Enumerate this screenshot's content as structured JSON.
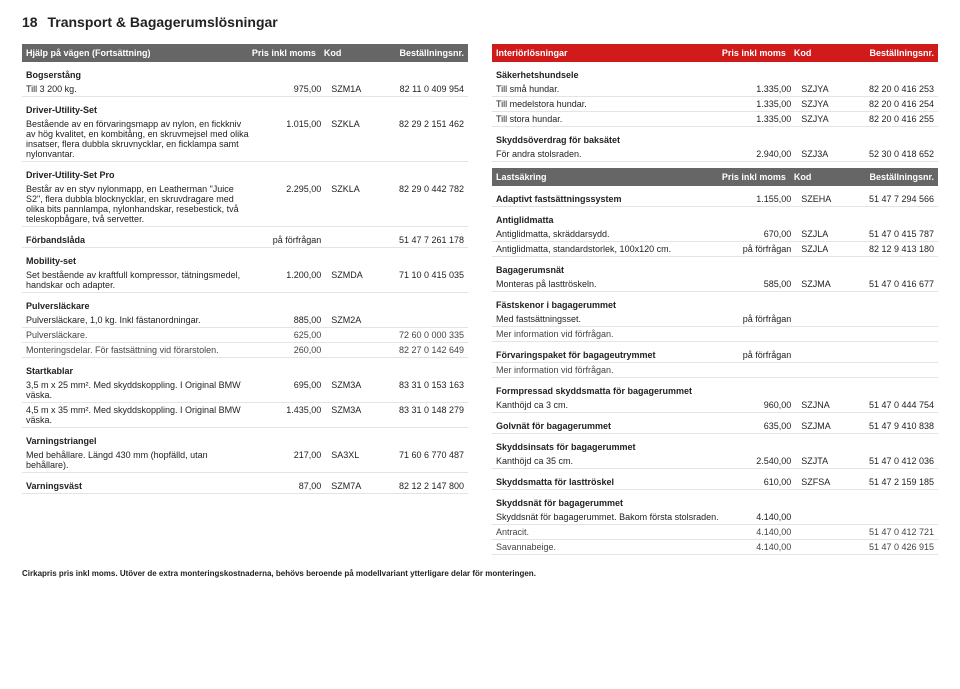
{
  "page_number": "18",
  "page_title": "Transport & Bagagerumslösningar",
  "left": {
    "header": {
      "title": "Hjälp på vägen (Fortsättning)",
      "col_price": "Pris inkl moms",
      "col_code": "Kod",
      "col_order": "Beställningsnr."
    },
    "groups": [
      {
        "heading": "Bogserstång",
        "rows": [
          {
            "name": "Till 3 200 kg.",
            "price": "975,00",
            "code": "SZM1A",
            "order": "82 11 0 409 954"
          }
        ]
      },
      {
        "heading": "Driver-Utility-Set",
        "rows": [
          {
            "name": "Bestående av en förvaringsmapp av nylon, en fickkniv av hög kvalitet, en kombitång, en skruvmejsel med olika insatser, flera dubbla skruvnycklar, en ficklampa samt nylonvantar.",
            "price": "1.015,00",
            "code": "SZKLA",
            "order": "82 29 2 151 462"
          }
        ]
      },
      {
        "heading": "Driver-Utility-Set Pro",
        "rows": [
          {
            "name": "Består av en styv nylonmapp, en Leatherman \"Juice S2\", flera dubbla blocknycklar, en skruvdragare med olika bits pannlampa, nylonhandskar, resebestick, två teleskopbågare, två servetter.",
            "price": "2.295,00",
            "code": "SZKLA",
            "order": "82 29 0 442 782"
          }
        ]
      },
      {
        "heading": "Förbandslåda",
        "inline": true,
        "rows": [
          {
            "name": "",
            "price": "på förfrågan",
            "code": "",
            "order": "51 47 7 261 178"
          }
        ]
      },
      {
        "heading": "Mobility-set",
        "rows": [
          {
            "name": "Set bestående av kraftfull kompressor, tätningsmedel, handskar och adapter.",
            "price": "1.200,00",
            "code": "SZMDA",
            "order": "71 10 0 415 035"
          }
        ]
      },
      {
        "heading": "Pulversläckare",
        "rows": [
          {
            "name": "Pulversläckare, 1,0 kg. Inkl fästanordningar.",
            "price": "885,00",
            "code": "SZM2A",
            "order": ""
          },
          {
            "name": "Pulversläckare.",
            "tiny": true,
            "price": "625,00",
            "code": "",
            "order": "72 60 0 000 335"
          },
          {
            "name": "Monteringsdelar. För fastsättning vid förarstolen.",
            "tiny": true,
            "price": "260,00",
            "code": "",
            "order": "82 27 0 142 649"
          }
        ]
      },
      {
        "heading": "Startkablar",
        "rows": [
          {
            "name": "3,5 m x 25 mm². Med skyddskoppling. I Original BMW väska.",
            "price": "695,00",
            "code": "SZM3A",
            "order": "83 31 0 153 163"
          },
          {
            "name": "4,5 m x 35 mm². Med skyddskoppling. I Original BMW väska.",
            "price": "1.435,00",
            "code": "SZM3A",
            "order": "83 31 0 148 279"
          }
        ]
      },
      {
        "heading": "Varningstriangel",
        "rows": [
          {
            "name": "Med behållare. Längd 430 mm (hopfälld, utan behållare).",
            "price": "217,00",
            "code": "SA3XL",
            "order": "71 60 6 770 487"
          }
        ]
      },
      {
        "heading": "Varningsväst",
        "inline": true,
        "rows": [
          {
            "name": "",
            "price": "87,00",
            "code": "SZM7A",
            "order": "82 12 2 147 800"
          }
        ]
      }
    ]
  },
  "right": {
    "header": {
      "title": "Interiörlösningar",
      "col_price": "Pris inkl moms",
      "col_code": "Kod",
      "col_order": "Beställningsnr."
    },
    "groups1": [
      {
        "heading": "Säkerhetshundsele",
        "rows": [
          {
            "name": "Till små hundar.",
            "price": "1.335,00",
            "code": "SZJYA",
            "order": "82 20 0 416 253"
          },
          {
            "name": "Till medelstora hundar.",
            "price": "1.335,00",
            "code": "SZJYA",
            "order": "82 20 0 416 254"
          },
          {
            "name": "Till stora hundar.",
            "price": "1.335,00",
            "code": "SZJYA",
            "order": "82 20 0 416 255"
          }
        ]
      },
      {
        "heading": "Skyddsöverdrag för baksätet",
        "rows": [
          {
            "name": "För andra stolsraden.",
            "price": "2.940,00",
            "code": "SZJ3A",
            "order": "52 30 0 418 652"
          }
        ]
      }
    ],
    "header2": {
      "title": "Lastsäkring",
      "col_price": "Pris inkl moms",
      "col_code": "Kod",
      "col_order": "Beställningsnr."
    },
    "groups2": [
      {
        "heading": "Adaptivt fastsättningssystem",
        "inline": true,
        "rows": [
          {
            "name": "",
            "price": "1.155,00",
            "code": "SZEHA",
            "order": "51 47 7 294 566"
          }
        ]
      },
      {
        "heading": "Antiglidmatta",
        "rows": [
          {
            "name": "Antiglidmatta, skräddarsydd.",
            "price": "670,00",
            "code": "SZJLA",
            "order": "51 47 0 415 787"
          },
          {
            "name": "Antiglidmatta, standardstorlek, 100x120 cm.",
            "price": "på förfrågan",
            "code": "SZJLA",
            "order": "82 12 9 413 180"
          }
        ]
      },
      {
        "heading": "Bagagerumsnät",
        "rows": [
          {
            "name": "Monteras på lasttröskeln.",
            "price": "585,00",
            "code": "SZJMA",
            "order": "51 47 0 416 677"
          }
        ]
      },
      {
        "heading": "Fästskenor i bagagerummet",
        "rows": [
          {
            "name": "Med fastsättningsset.",
            "price": "på förfrågan",
            "code": "",
            "order": ""
          },
          {
            "name": "Mer information vid förfrågan.",
            "tiny": true,
            "price": "",
            "code": "",
            "order": ""
          }
        ]
      },
      {
        "heading": "Förvaringspaket för bagageutrymmet",
        "inline": true,
        "rows": [
          {
            "name": "",
            "price": "på förfrågan",
            "code": "",
            "order": ""
          },
          {
            "name": "Mer information vid förfrågan.",
            "tiny": true,
            "price": "",
            "code": "",
            "order": ""
          }
        ]
      },
      {
        "heading": "Formpressad skyddsmatta för bagagerummet",
        "rows": [
          {
            "name": "Kanthöjd ca 3 cm.",
            "price": "960,00",
            "code": "SZJNA",
            "order": "51 47 0 444 754"
          }
        ]
      },
      {
        "heading": "Golvnät för bagagerummet",
        "inline": true,
        "rows": [
          {
            "name": "",
            "price": "635,00",
            "code": "SZJMA",
            "order": "51 47 9 410 838"
          }
        ]
      },
      {
        "heading": "Skyddsinsats för bagagerummet",
        "rows": [
          {
            "name": "Kanthöjd ca 35 cm.",
            "price": "2.540,00",
            "code": "SZJTA",
            "order": "51 47 0 412 036"
          }
        ]
      },
      {
        "heading": "Skyddsmatta för lasttröskel",
        "inline": true,
        "rows": [
          {
            "name": "",
            "price": "610,00",
            "code": "SZFSA",
            "order": "51 47 2 159 185"
          }
        ]
      },
      {
        "heading": "Skyddsnät för bagagerummet",
        "rows": [
          {
            "name": "Skyddsnät för bagagerummet. Bakom första stolsraden.",
            "price": "4.140,00",
            "code": "",
            "order": ""
          },
          {
            "name": "Antracit.",
            "tiny": true,
            "price": "4.140,00",
            "code": "",
            "order": "51 47 0 412 721"
          },
          {
            "name": "Savannabeige.",
            "tiny": true,
            "price": "4.140,00",
            "code": "",
            "order": "51 47 0 426 915"
          }
        ]
      }
    ]
  },
  "footnote": "Cirkapris pris inkl moms. Utöver de extra monteringskostnaderna, behövs beroende på modellvariant ytterligare delar för monteringen."
}
